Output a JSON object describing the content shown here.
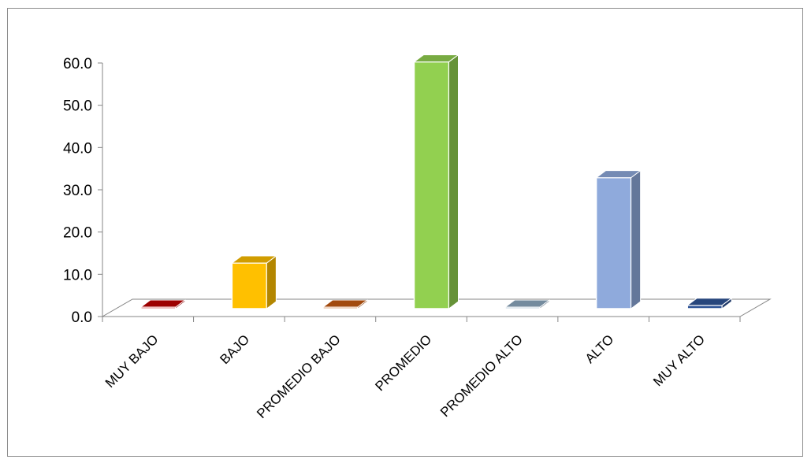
{
  "chart_data": {
    "type": "bar",
    "style": "3d-column",
    "categories": [
      "MUY BAJO",
      "BAJO",
      "PROMEDIO BAJO",
      "PROMEDIO",
      "PROMEDIO ALTO",
      "ALTO",
      "MUY ALTO"
    ],
    "values": [
      0.0,
      10.8,
      0.0,
      58.4,
      0.0,
      31.0,
      0.8
    ],
    "colors": [
      "#c00000",
      "#ffc000",
      "#c55a11",
      "#92d050",
      "#8ea9c1",
      "#8faadc",
      "#2f5597"
    ],
    "ylim": [
      0,
      60
    ],
    "yticks": [
      "0.0",
      "10.0",
      "20.0",
      "30.0",
      "40.0",
      "50.0",
      "60.0"
    ],
    "grid": false,
    "legend": "none",
    "title": "",
    "xlabel": "",
    "ylabel": ""
  }
}
